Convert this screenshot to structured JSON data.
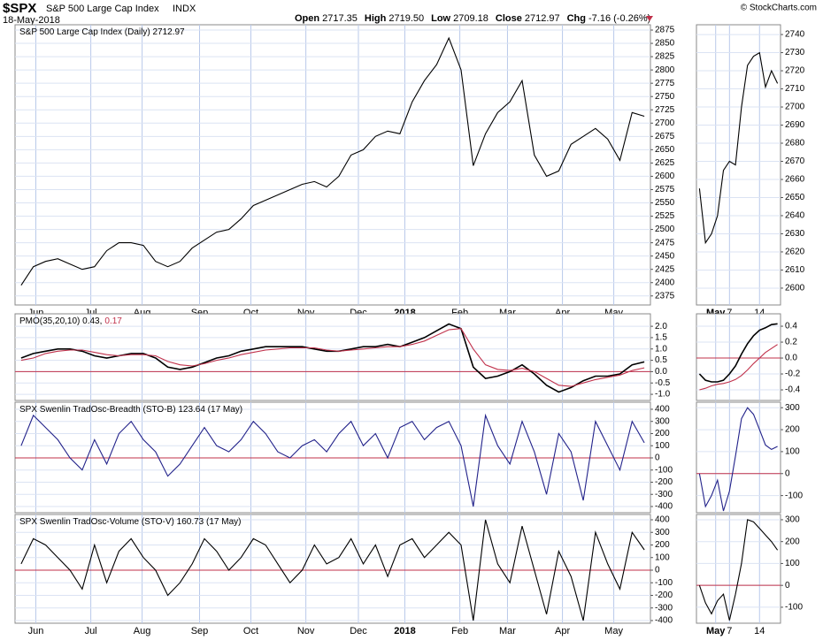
{
  "header": {
    "symbol": "$SPX",
    "name": "S&P 500 Large Cap Index",
    "exchange": "INDX",
    "date": "18-May-2018",
    "quote": [
      {
        "label": "Open",
        "value": "2717.35"
      },
      {
        "label": "High",
        "value": "2719.50"
      },
      {
        "label": "Low",
        "value": "2709.18"
      },
      {
        "label": "Close",
        "value": "2712.97"
      },
      {
        "label": "Chg",
        "value": "-7.16 (-0.26%)"
      }
    ],
    "copyright": "© StockCharts.com"
  },
  "chart_data": [
    {
      "type": "line",
      "title": "S&P 500 Large Cap Index (Daily) 2712.97",
      "xlim": [
        -0.5,
        51.5
      ],
      "xticks": [
        {
          "value": 1.2,
          "label": "Jun"
        },
        {
          "value": 5.7,
          "label": "Jul"
        },
        {
          "value": 9.9,
          "label": "Aug"
        },
        {
          "value": 14.6,
          "label": "Sep"
        },
        {
          "value": 18.8,
          "label": "Oct"
        },
        {
          "value": 23.3,
          "label": "Nov"
        },
        {
          "value": 27.6,
          "label": "Dec"
        },
        {
          "value": 31.4,
          "label": "2018",
          "bold": true
        },
        {
          "value": 35.9,
          "label": "Feb"
        },
        {
          "value": 39.8,
          "label": "Mar"
        },
        {
          "value": 44.3,
          "label": "Apr"
        },
        {
          "value": 48.5,
          "label": "May"
        }
      ],
      "ylim": [
        2358,
        2885
      ],
      "yticks": [
        2375,
        2400,
        2425,
        2450,
        2475,
        2500,
        2525,
        2550,
        2575,
        2600,
        2625,
        2650,
        2675,
        2700,
        2725,
        2750,
        2775,
        2800,
        2825,
        2850,
        2875
      ],
      "series": [
        {
          "color": "#000000",
          "values": [
            2395,
            2430,
            2440,
            2445,
            2435,
            2425,
            2430,
            2460,
            2475,
            2475,
            2470,
            2440,
            2430,
            2440,
            2465,
            2480,
            2495,
            2500,
            2520,
            2545,
            2555,
            2565,
            2575,
            2585,
            2590,
            2580,
            2600,
            2640,
            2650,
            2675,
            2685,
            2680,
            2740,
            2780,
            2810,
            2860,
            2800,
            2620,
            2680,
            2720,
            2740,
            2780,
            2640,
            2600,
            2610,
            2660,
            2675,
            2690,
            2670,
            2630,
            2720,
            2713
          ]
        }
      ]
    },
    {
      "type": "line",
      "title": "PMO(35,20,10) 0.43,",
      "title_note": "0.17",
      "title_note_color": "#c0304a",
      "xlim": [
        -0.5,
        51.5
      ],
      "reference_line": 0,
      "reference_color": "#c0304a",
      "ylim": [
        -1.27,
        2.55
      ],
      "yticks": [
        {
          "value": -1,
          "label": "-1.0"
        },
        {
          "value": -0.5,
          "label": "-0.5"
        },
        {
          "value": 0,
          "label": "0.0"
        },
        {
          "value": 0.5,
          "label": "0.5"
        },
        {
          "value": 1,
          "label": "1.0"
        },
        {
          "value": 1.5,
          "label": "1.5"
        },
        {
          "value": 2,
          "label": "2.0"
        }
      ],
      "series": [
        {
          "color": "#000000",
          "values": [
            0.6,
            0.8,
            0.9,
            1.0,
            1.0,
            0.9,
            0.7,
            0.6,
            0.7,
            0.8,
            0.8,
            0.6,
            0.2,
            0.1,
            0.2,
            0.4,
            0.6,
            0.7,
            0.9,
            1.0,
            1.1,
            1.1,
            1.1,
            1.1,
            1.0,
            0.9,
            0.9,
            1.0,
            1.1,
            1.1,
            1.2,
            1.1,
            1.3,
            1.5,
            1.8,
            2.1,
            1.9,
            0.2,
            -0.3,
            -0.2,
            0.0,
            0.3,
            -0.1,
            -0.6,
            -0.9,
            -0.7,
            -0.4,
            -0.2,
            -0.2,
            -0.1,
            0.3,
            0.43
          ]
        },
        {
          "color": "#c0304a",
          "values": [
            0.5,
            0.6,
            0.8,
            0.9,
            0.95,
            0.95,
            0.85,
            0.75,
            0.7,
            0.75,
            0.75,
            0.7,
            0.45,
            0.3,
            0.25,
            0.35,
            0.5,
            0.6,
            0.75,
            0.85,
            0.95,
            1.0,
            1.05,
            1.05,
            1.05,
            0.95,
            0.9,
            0.95,
            1.0,
            1.05,
            1.1,
            1.1,
            1.2,
            1.35,
            1.6,
            1.85,
            1.9,
            1.0,
            0.3,
            0.1,
            0.05,
            0.15,
            0.0,
            -0.3,
            -0.6,
            -0.65,
            -0.5,
            -0.35,
            -0.25,
            -0.15,
            0.05,
            0.17
          ]
        }
      ]
    },
    {
      "type": "line",
      "title": "SPX Swenlin TradOsc-Breadth (STO-B) 123.64 (17 May)",
      "xlim": [
        -0.5,
        51.5
      ],
      "reference_line": 0,
      "reference_color": "#c0304a",
      "ylim": [
        -451,
        458
      ],
      "yticks": [
        -400,
        -300,
        -200,
        -100,
        0,
        100,
        200,
        300,
        400
      ],
      "series": [
        {
          "color": "#22228a",
          "values": [
            100,
            350,
            250,
            150,
            0,
            -100,
            150,
            -50,
            200,
            300,
            150,
            50,
            -150,
            -50,
            100,
            250,
            100,
            50,
            150,
            300,
            200,
            50,
            0,
            100,
            150,
            50,
            200,
            300,
            100,
            200,
            0,
            250,
            300,
            150,
            250,
            300,
            100,
            -400,
            350,
            100,
            -50,
            300,
            50,
            -300,
            200,
            50,
            -350,
            300,
            100,
            -100,
            300,
            124
          ]
        }
      ]
    },
    {
      "type": "line",
      "title": "SPX Swenlin TradOsc-Volume (STO-V) 160.73 (17 May)",
      "xlim": [
        -0.5,
        51.5
      ],
      "reference_line": 0,
      "reference_color": "#c0304a",
      "ylim": [
        -421,
        442
      ],
      "yticks": [
        -400,
        -300,
        -200,
        -100,
        0,
        100,
        200,
        300,
        400
      ],
      "series": [
        {
          "color": "#000000",
          "values": [
            50,
            250,
            200,
            100,
            0,
            -150,
            200,
            -100,
            150,
            250,
            100,
            0,
            -200,
            -100,
            50,
            250,
            150,
            0,
            100,
            250,
            200,
            50,
            -100,
            0,
            200,
            50,
            100,
            250,
            50,
            200,
            -50,
            200,
            250,
            100,
            200,
            300,
            200,
            -400,
            400,
            50,
            -100,
            350,
            0,
            -350,
            150,
            -50,
            -400,
            300,
            50,
            -150,
            300,
            161
          ]
        }
      ]
    },
    {
      "type": "line",
      "xlim": [
        -0.5,
        13.5
      ],
      "xticks": [
        {
          "value": 2.7,
          "label": "May",
          "bold": true
        },
        {
          "value": 5,
          "label": "7"
        },
        {
          "value": 10,
          "label": "14"
        }
      ],
      "ylim": [
        2590.7,
        2745.4
      ],
      "yticks": [
        2600,
        2610,
        2620,
        2630,
        2640,
        2650,
        2660,
        2670,
        2680,
        2690,
        2700,
        2710,
        2720,
        2730,
        2740
      ],
      "series": [
        {
          "color": "#000000",
          "values": [
            2655,
            2625,
            2630,
            2640,
            2665,
            2670,
            2668,
            2700,
            2723,
            2728,
            2730,
            2711,
            2720,
            2713
          ]
        }
      ]
    },
    {
      "type": "line",
      "xlim": [
        -0.5,
        13.5
      ],
      "reference_line": 0,
      "reference_color": "#c0304a",
      "ylim": [
        -0.533,
        0.556
      ],
      "yticks": [
        -0.4,
        -0.2,
        {
          "value": 0,
          "label": "0.0"
        },
        0.2,
        0.4
      ],
      "series": [
        {
          "color": "#000000",
          "values": [
            -0.2,
            -0.28,
            -0.3,
            -0.3,
            -0.28,
            -0.2,
            -0.1,
            0.05,
            0.18,
            0.28,
            0.35,
            0.38,
            0.42,
            0.43
          ]
        },
        {
          "color": "#c0304a",
          "values": [
            -0.4,
            -0.38,
            -0.35,
            -0.33,
            -0.32,
            -0.3,
            -0.27,
            -0.22,
            -0.15,
            -0.07,
            0.0,
            0.07,
            0.12,
            0.17
          ]
        }
      ]
    },
    {
      "type": "line",
      "xlim": [
        -0.5,
        13.5
      ],
      "reference_line": 0,
      "reference_color": "#c0304a",
      "ylim": [
        -178,
        325
      ],
      "yticks": [
        -100,
        0,
        100,
        200,
        300
      ],
      "series": [
        {
          "color": "#22228a",
          "values": [
            0,
            -150,
            -100,
            -30,
            -170,
            -80,
            80,
            250,
            300,
            270,
            200,
            130,
            110,
            124
          ]
        }
      ]
    },
    {
      "type": "line",
      "xlim": [
        -0.5,
        13.5
      ],
      "reference_line": 0,
      "reference_color": "#c0304a",
      "ylim": [
        -173,
        324
      ],
      "yticks": [
        -100,
        0,
        100,
        200,
        300
      ],
      "series": [
        {
          "color": "#000000",
          "values": [
            0,
            -80,
            -130,
            -70,
            -40,
            -160,
            -40,
            100,
            300,
            290,
            260,
            230,
            200,
            161
          ]
        }
      ]
    }
  ]
}
